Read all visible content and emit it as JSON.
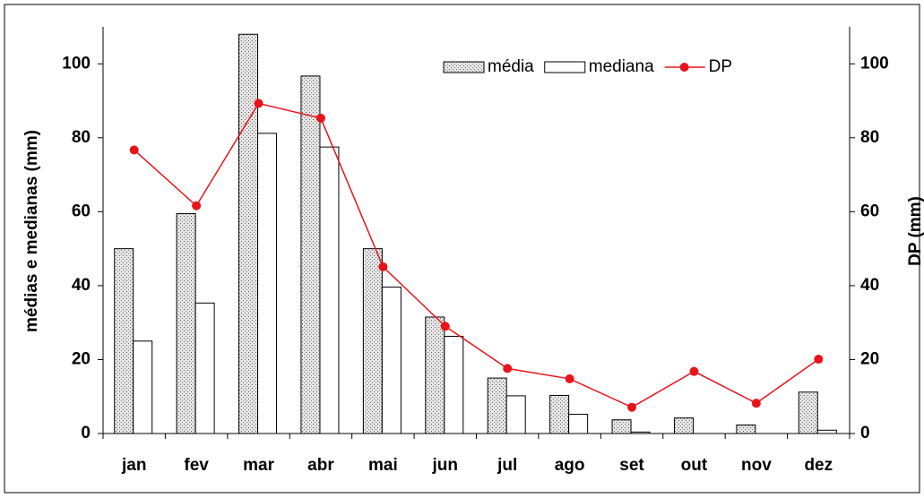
{
  "chart_data": {
    "type": "bar",
    "ylabel": "médias e medianas (mm)",
    "y2label": "DP (mm)",
    "categories": [
      "jan",
      "fev",
      "mar",
      "abr",
      "mai",
      "jun",
      "jul",
      "ago",
      "set",
      "out",
      "nov",
      "dez"
    ],
    "series": [
      {
        "name": "média",
        "type": "bar",
        "color": "#e6e6e6",
        "values": [
          50,
          59.5,
          108,
          96.7,
          50,
          31.5,
          15,
          10.3,
          3.7,
          4.2,
          2.3,
          11.2
        ]
      },
      {
        "name": "mediana",
        "type": "bar",
        "color": "#ffffff",
        "values": [
          25,
          35.3,
          81.2,
          77.5,
          39.6,
          26.3,
          10.2,
          5.2,
          0.4,
          0,
          0,
          0.9
        ]
      },
      {
        "name": "DP",
        "type": "line",
        "axis": "y2",
        "color": "#e8141b",
        "values": [
          76.7,
          61.6,
          89.3,
          85.3,
          45.1,
          29,
          17.6,
          14.8,
          7.1,
          16.8,
          8.2,
          20.1
        ]
      }
    ],
    "ylim": [
      0,
      110
    ],
    "yticks": [
      0,
      20,
      40,
      60,
      80,
      100
    ],
    "y2lim": [
      0,
      110
    ],
    "y2ticks": [
      0,
      20,
      40,
      60,
      80,
      100
    ]
  }
}
